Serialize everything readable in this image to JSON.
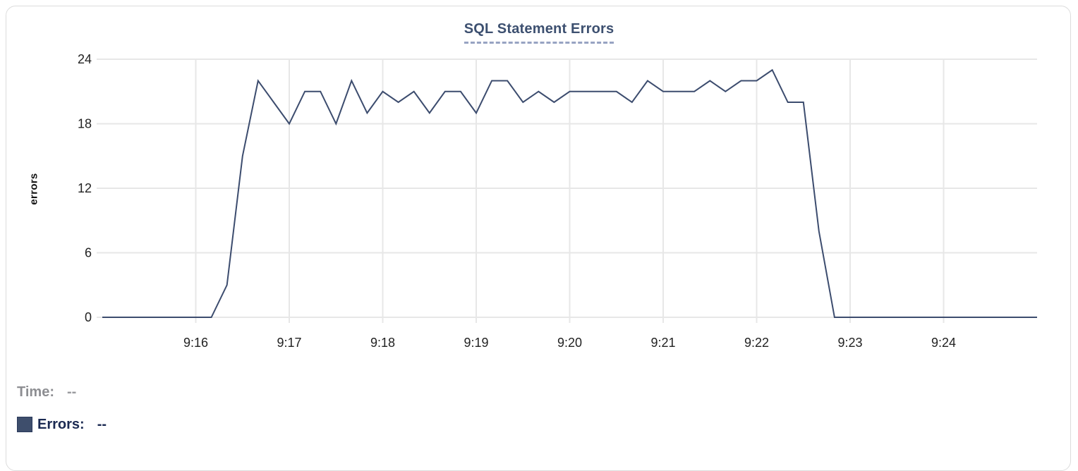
{
  "chart": {
    "title": "SQL Statement Errors",
    "y_axis_title": "errors"
  },
  "tooltip": {
    "time_label": "Time:",
    "time_value": "--",
    "errors_label": "Errors:",
    "errors_value": "--"
  },
  "colors": {
    "line": "#3c4c6e",
    "title_text": "#3d5070",
    "title_underline": "#97a3c2",
    "grid": "#e7e7e7",
    "tick_text": "#222222",
    "time_text": "#8d8e92",
    "errors_text": "#1b2a52",
    "swatch_fill": "#3e4e6c",
    "swatch_border": "#2b3a5c",
    "card_border": "#dcdcdc"
  },
  "chart_data": {
    "type": "line",
    "title": "SQL Statement Errors",
    "xlabel": "",
    "ylabel": "errors",
    "grid": true,
    "legend_position": "bottom-left",
    "ylim": [
      0,
      24
    ],
    "y_ticks": [
      0,
      6,
      12,
      18,
      24
    ],
    "x_tick_labels": [
      "9:16",
      "9:17",
      "9:18",
      "9:19",
      "9:20",
      "9:21",
      "9:22",
      "9:23",
      "9:24"
    ],
    "x_start": "9:15:00",
    "x_end": "9:25:00",
    "sample_interval_seconds": 10,
    "series": [
      {
        "name": "Errors",
        "start": "9:15:00",
        "values": [
          0,
          0,
          0,
          0,
          0,
          0,
          0,
          0,
          3,
          15,
          22,
          20,
          18,
          21,
          21,
          18,
          22,
          19,
          21,
          20,
          21,
          19,
          21,
          21,
          19,
          22,
          22,
          20,
          21,
          20,
          21,
          21,
          21,
          21,
          20,
          22,
          21,
          21,
          21,
          22,
          21,
          22,
          22,
          23,
          20,
          20,
          8,
          0,
          0,
          0,
          0,
          0,
          0,
          0,
          0,
          0,
          0,
          0,
          0,
          0,
          0
        ]
      }
    ]
  }
}
